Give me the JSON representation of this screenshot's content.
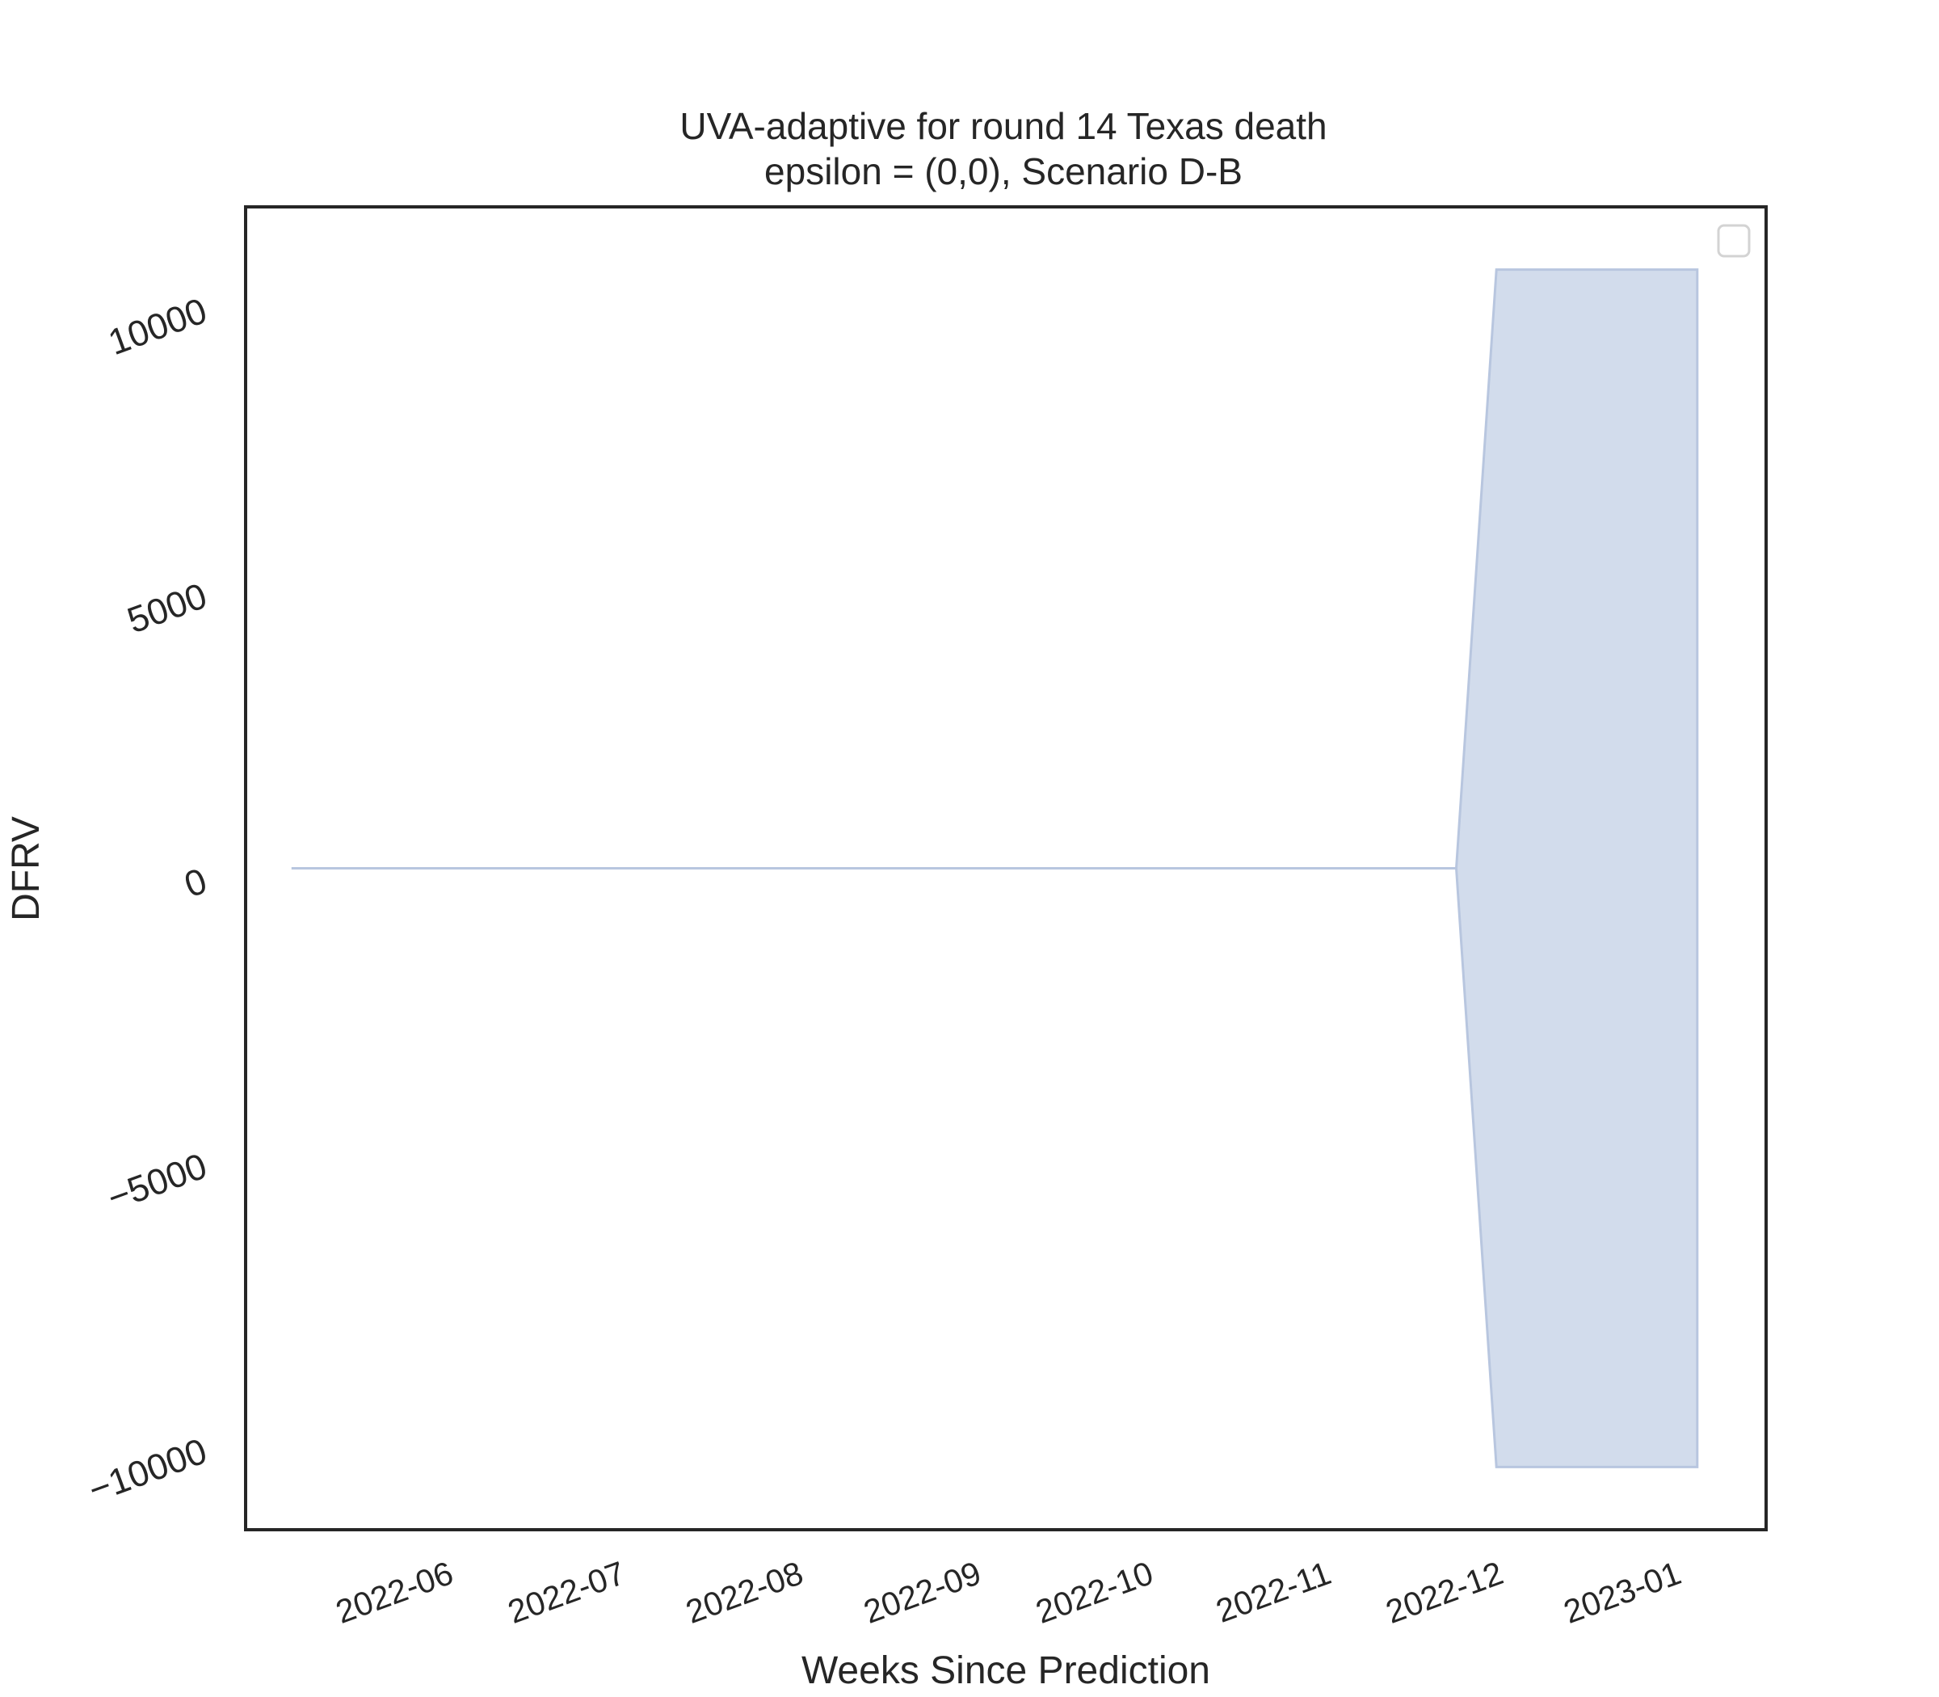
{
  "chart_data": {
    "type": "area",
    "title_line1": "UVA-adaptive for round 14 Texas death",
    "title_line2": "epsilon = (0,0), Scenario D-B",
    "xlabel": "Weeks Since Prediction",
    "ylabel": "DFRV",
    "x_tick_labels": [
      "2022-06",
      "2022-07",
      "2022-08",
      "2022-09",
      "2022-10",
      "2022-11",
      "2022-12",
      "2023-01"
    ],
    "x_tick_dates": [
      "2022-06-01",
      "2022-07-01",
      "2022-08-01",
      "2022-09-01",
      "2022-10-01",
      "2022-11-01",
      "2022-12-01",
      "2023-01-01"
    ],
    "xlim": [
      "2022-05-06",
      "2023-01-26"
    ],
    "y_tick_labels": [
      "−10000",
      "−5000",
      "0",
      "5000",
      "10000"
    ],
    "y_ticks": [
      -10000,
      -5000,
      0,
      5000,
      10000
    ],
    "ylim": [
      -11600,
      11600
    ],
    "legend": {
      "position": "top-right",
      "entries": []
    },
    "grid": false,
    "colors": {
      "fill": "#d2dcec",
      "edge": "#b8c6df",
      "frame": "#262626",
      "text": "#262626"
    },
    "series": [
      {
        "dates": [
          "2022-05-14",
          "2022-05-21",
          "2022-05-28",
          "2022-06-04",
          "2022-06-11",
          "2022-06-18",
          "2022-06-25",
          "2022-07-02",
          "2022-07-09",
          "2022-07-16",
          "2022-07-23",
          "2022-07-30",
          "2022-08-06",
          "2022-08-13",
          "2022-08-20",
          "2022-08-27",
          "2022-09-03",
          "2022-09-10",
          "2022-09-17",
          "2022-09-24",
          "2022-10-01",
          "2022-10-08",
          "2022-10-15",
          "2022-10-22",
          "2022-10-29",
          "2022-11-05",
          "2022-11-12",
          "2022-11-19",
          "2022-11-26",
          "2022-12-03",
          "2022-12-10",
          "2022-12-17",
          "2022-12-24",
          "2022-12-31",
          "2023-01-07",
          "2023-01-14"
        ],
        "lower": [
          0,
          0,
          0,
          0,
          0,
          0,
          0,
          0,
          0,
          0,
          0,
          0,
          0,
          0,
          0,
          0,
          0,
          0,
          0,
          0,
          0,
          0,
          0,
          0,
          0,
          0,
          0,
          0,
          0,
          0,
          -10500,
          -10500,
          -10500,
          -10500,
          -10500,
          -10500
        ],
        "upper": [
          0,
          0,
          0,
          0,
          0,
          0,
          0,
          0,
          0,
          0,
          0,
          0,
          0,
          0,
          0,
          0,
          0,
          0,
          0,
          0,
          0,
          0,
          0,
          0,
          0,
          0,
          0,
          0,
          0,
          0,
          10500,
          10500,
          10500,
          10500,
          10500,
          10500
        ]
      }
    ]
  }
}
